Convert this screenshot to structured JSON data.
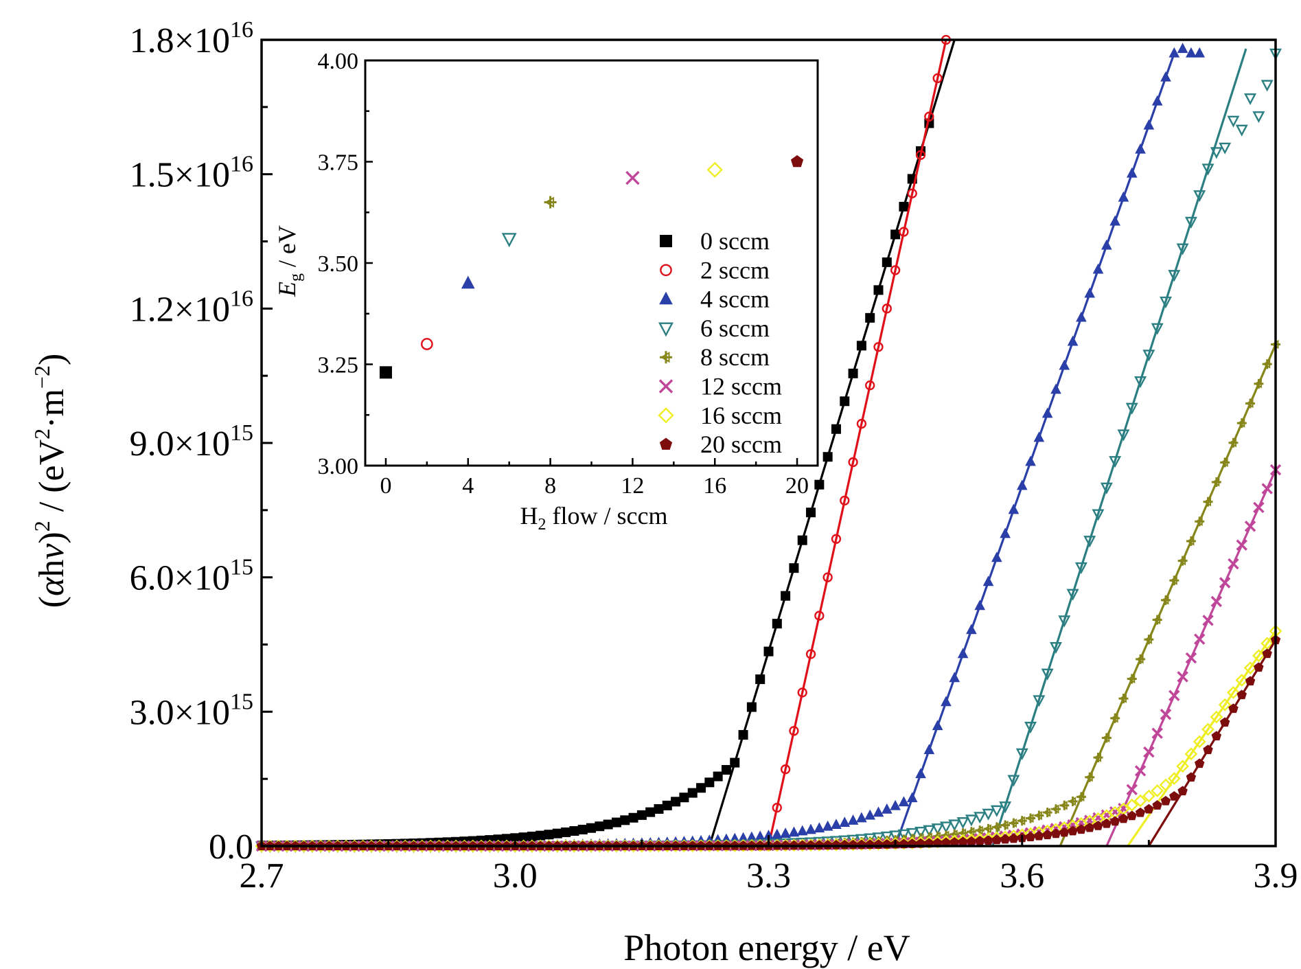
{
  "chart_data": [
    {
      "type": "scatter",
      "xlabel": "Photon energy / eV",
      "ylabel_parts": {
        "open": "(",
        "alpha": "α",
        "h": "h",
        "nu": "ν",
        "close_sq": ")",
        "sq": "2",
        "mid": " / (eV",
        "sq2": "2",
        "dot": "·m",
        "neg2": "−2",
        "end": ")"
      },
      "xlim": [
        2.7,
        3.9
      ],
      "ylim": [
        0,
        1.8e+16
      ],
      "xticks": [
        2.7,
        3.0,
        3.3,
        3.6,
        3.9
      ],
      "xtick_labels": [
        "2.7",
        "3.0",
        "3.3",
        "3.6",
        "3.9"
      ],
      "yticks": [
        {
          "value": 0,
          "mant": "0.0",
          "exp": ""
        },
        {
          "value": 3000000000000000.0,
          "mant": "3.0×10",
          "exp": "15"
        },
        {
          "value": 6000000000000000.0,
          "mant": "6.0×10",
          "exp": "15"
        },
        {
          "value": 9000000000000000.0,
          "mant": "9.0×10",
          "exp": "15"
        },
        {
          "value": 1.2e+16,
          "mant": "1.2×10",
          "exp": "16"
        },
        {
          "value": 1.5e+16,
          "mant": "1.5×10",
          "exp": "16"
        },
        {
          "value": 1.8e+16,
          "mant": "1.8×10",
          "exp": "16"
        }
      ],
      "grid": false,
      "series": [
        {
          "name": "0 sccm",
          "color": "#000000",
          "marker": "square",
          "Eg": 3.23,
          "rise": 9.0,
          "kink": 3.26,
          "end": 3.49,
          "fit": [
            [
              3.23,
              0
            ],
            [
              3.52,
              1.8e+16
            ]
          ]
        },
        {
          "name": "2 sccm",
          "color": "#e0101a",
          "marker": "circle",
          "Eg": 3.3,
          "rise": 9.5,
          "kink": 3.3,
          "end": 3.52,
          "fit": [
            [
              3.3,
              0
            ],
            [
              3.51,
              1.8e+16
            ]
          ]
        },
        {
          "name": "4 sccm",
          "color": "#2a3fa8",
          "marker": "triangle-up",
          "Eg": 3.45,
          "rise": 9.0,
          "kink": 3.47,
          "end": 3.78,
          "fit": [
            [
              3.45,
              0
            ],
            [
              3.78,
              1.77e+16
            ]
          ],
          "plateau": [
            [
              3.79,
              1.78e+16
            ],
            [
              3.8,
              1.77e+16
            ],
            [
              3.81,
              1.77e+16
            ]
          ]
        },
        {
          "name": "6 sccm",
          "color": "#2b7f82",
          "marker": "triangle-down",
          "Eg": 3.56,
          "rise": 10.0,
          "kink": 3.58,
          "end": 3.82,
          "fit": [
            [
              3.565,
              0
            ],
            [
              3.865,
              1.78e+16
            ]
          ],
          "scatter_tail": [
            [
              3.83,
              1.55e+16
            ],
            [
              3.84,
              1.56e+16
            ],
            [
              3.85,
              1.62e+16
            ],
            [
              3.86,
              1.6e+16
            ],
            [
              3.87,
              1.67e+16
            ],
            [
              3.88,
              1.63e+16
            ],
            [
              3.89,
              1.7e+16
            ],
            [
              3.9,
              1.77e+16
            ]
          ]
        },
        {
          "name": "8 sccm",
          "color": "#86861a",
          "marker": "plus-tri",
          "Eg": 3.64,
          "rise": 9.5,
          "kink": 3.67,
          "end": 3.9,
          "fit": [
            [
              3.645,
              0
            ],
            [
              3.9,
              1.12e+16
            ]
          ]
        },
        {
          "name": "12 sccm",
          "color": "#c0469a",
          "marker": "x",
          "Eg": 3.7,
          "rise": 9.5,
          "kink": 3.72,
          "end": 3.9,
          "fit": [
            [
              3.7,
              0
            ],
            [
              3.9,
              8400000000000000.0
            ]
          ]
        },
        {
          "name": "16 sccm",
          "color": "#eeee22",
          "marker": "diamond",
          "Eg": 3.72,
          "rise": 10.0,
          "kink": 3.78,
          "end": 3.9,
          "fit": [
            [
              3.725,
              0
            ],
            [
              3.9,
              4800000000000000.0
            ]
          ]
        },
        {
          "name": "20 sccm",
          "color": "#7d0c0c",
          "marker": "pentagon",
          "Eg": 3.74,
          "rise": 10.0,
          "kink": 3.79,
          "end": 3.9,
          "fit": [
            [
              3.75,
              0
            ],
            [
              3.9,
              4600000000000000.0
            ]
          ]
        }
      ],
      "legend_position": "inside inset, right"
    },
    {
      "type": "scatter",
      "xlabel_parts": {
        "pre": "H",
        "sub": "2",
        "post": " flow / sccm"
      },
      "ylabel_parts": {
        "pre": "E",
        "sub": "g",
        "post": " / eV"
      },
      "xlim": [
        -1,
        21
      ],
      "ylim": [
        3.0,
        4.0
      ],
      "xticks": [
        0,
        4,
        8,
        12,
        16,
        20
      ],
      "xtick_labels": [
        "0",
        "4",
        "8",
        "12",
        "16",
        "20"
      ],
      "yticks": [
        3.0,
        3.25,
        3.5,
        3.75,
        4.0
      ],
      "ytick_labels": [
        "3.00",
        "3.25",
        "3.50",
        "3.75",
        "4.00"
      ],
      "grid": false,
      "points": [
        {
          "x": 0,
          "y": 3.23,
          "series": "0 sccm"
        },
        {
          "x": 2,
          "y": 3.3,
          "series": "2 sccm"
        },
        {
          "x": 4,
          "y": 3.45,
          "series": "4 sccm"
        },
        {
          "x": 6,
          "y": 3.56,
          "series": "6 sccm"
        },
        {
          "x": 8,
          "y": 3.65,
          "series": "8 sccm"
        },
        {
          "x": 12,
          "y": 3.71,
          "series": "12 sccm"
        },
        {
          "x": 16,
          "y": 3.73,
          "series": "16 sccm"
        },
        {
          "x": 20,
          "y": 3.75,
          "series": "20 sccm"
        }
      ]
    }
  ]
}
